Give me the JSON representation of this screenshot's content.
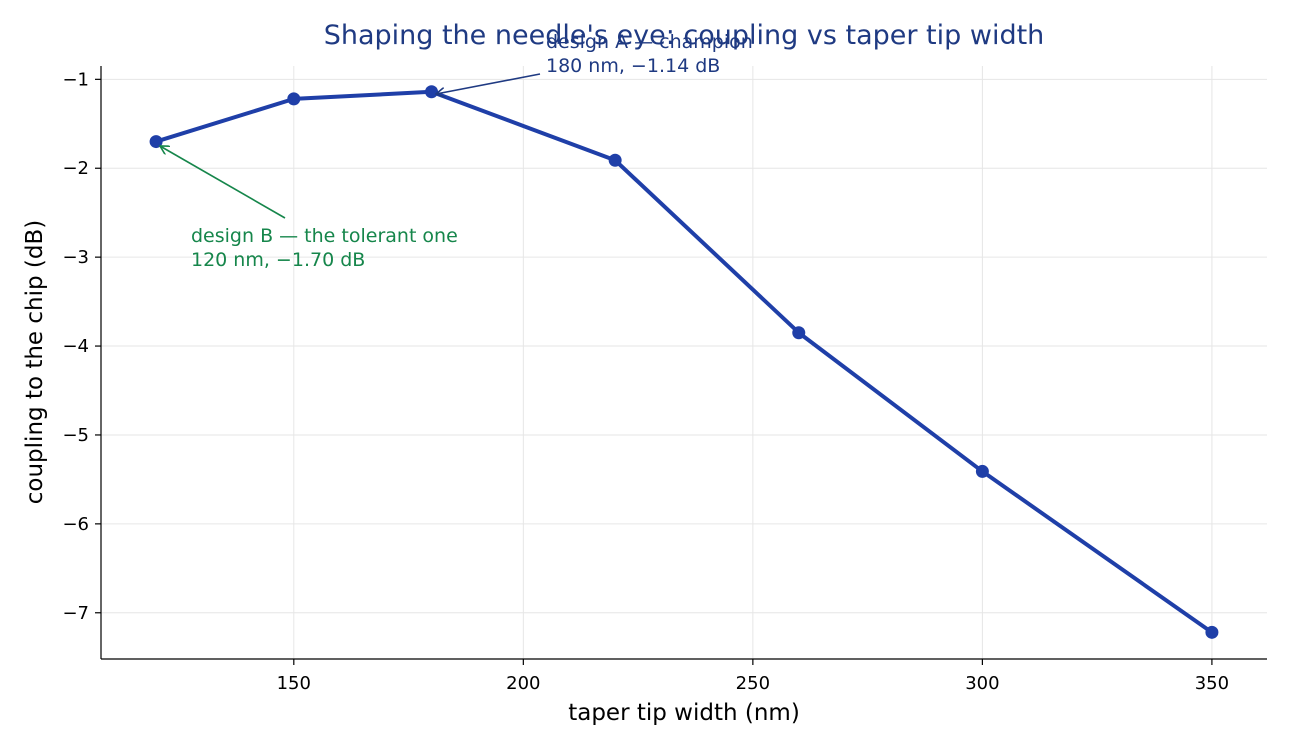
{
  "colors": {
    "line": "#1f3fa8",
    "title": "#1f3a82",
    "annotation_a": "#1f3a82",
    "annotation_b": "#16864b",
    "grid": "#e6e6e6",
    "axis": "#000000"
  },
  "chart_data": {
    "type": "line",
    "title": "Shaping the needle's eye: coupling vs taper tip width",
    "xlabel": "taper tip width (nm)",
    "ylabel": "coupling to the chip (dB)",
    "xlim": [
      108,
      362
    ],
    "ylim": [
      -7.52,
      -0.85
    ],
    "grid": true,
    "x_ticks": [
      150,
      200,
      250,
      300,
      350
    ],
    "y_ticks": [
      -1,
      -2,
      -3,
      -4,
      -5,
      -6,
      -7
    ],
    "x_tick_labels": [
      "150",
      "200",
      "250",
      "300",
      "350"
    ],
    "y_tick_labels": [
      "−1",
      "−2",
      "−3",
      "−4",
      "−5",
      "−6",
      "−7"
    ],
    "series": [
      {
        "x": [
          120,
          150,
          180,
          220,
          260,
          300,
          350
        ],
        "y": [
          -1.7,
          -1.22,
          -1.14,
          -1.91,
          -3.85,
          -5.41,
          -7.22
        ]
      }
    ],
    "annotations": [
      {
        "id": "design-a",
        "line1": "design A — champion",
        "line2": "180 nm, −1.14 dB",
        "point": [
          180,
          -1.14
        ]
      },
      {
        "id": "design-b",
        "line1": "design B — the tolerant one",
        "line2": "120 nm, −1.70 dB",
        "point": [
          120,
          -1.7
        ]
      }
    ]
  }
}
